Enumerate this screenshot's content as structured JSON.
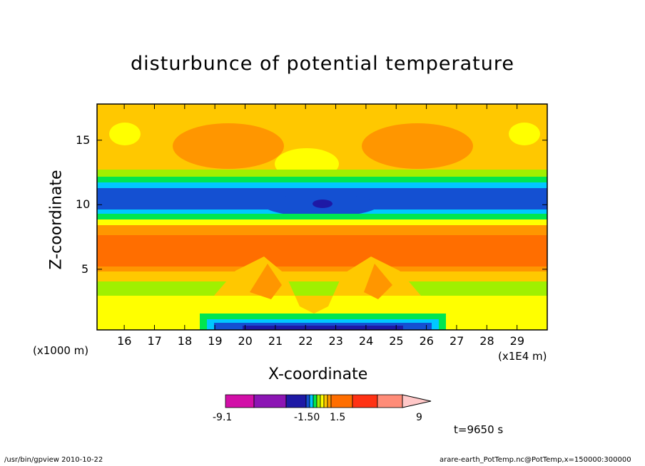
{
  "chart_data": {
    "type": "heatmap",
    "title": "disturbunce of potential temperature",
    "xlabel": "X-coordinate",
    "ylabel": "Z-coordinate",
    "x_unit": "(x1E4 m)",
    "y_unit": "(x1000 m)",
    "xlim": [
      15.1,
      30.0
    ],
    "ylim": [
      0.3,
      17.8
    ],
    "x_ticks": [
      "16",
      "17",
      "18",
      "19",
      "20",
      "21",
      "22",
      "23",
      "24",
      "25",
      "26",
      "27",
      "28",
      "29"
    ],
    "y_ticks": [
      "5",
      "10",
      "15"
    ],
    "colorbar": {
      "labels": [
        "-9.1",
        "-1.50",
        "1.5",
        "9"
      ],
      "colors": [
        "#d20fa8",
        "#8c15b4",
        "#1e19a5",
        "#1450d2",
        "#00c8ff",
        "#00e650",
        "#a0f000",
        "#ffff00",
        "#ffc800",
        "#ff9600",
        "#ff6e00",
        "#ff3214",
        "#ff8c78",
        "#ffc8c8"
      ]
    },
    "annotation": "t=9650 s"
  },
  "footer": {
    "left": "/usr/bin/gpview   2010-10-22",
    "right": "arare-earth_PotTemp.nc@PotTemp,x=150000:300000"
  }
}
